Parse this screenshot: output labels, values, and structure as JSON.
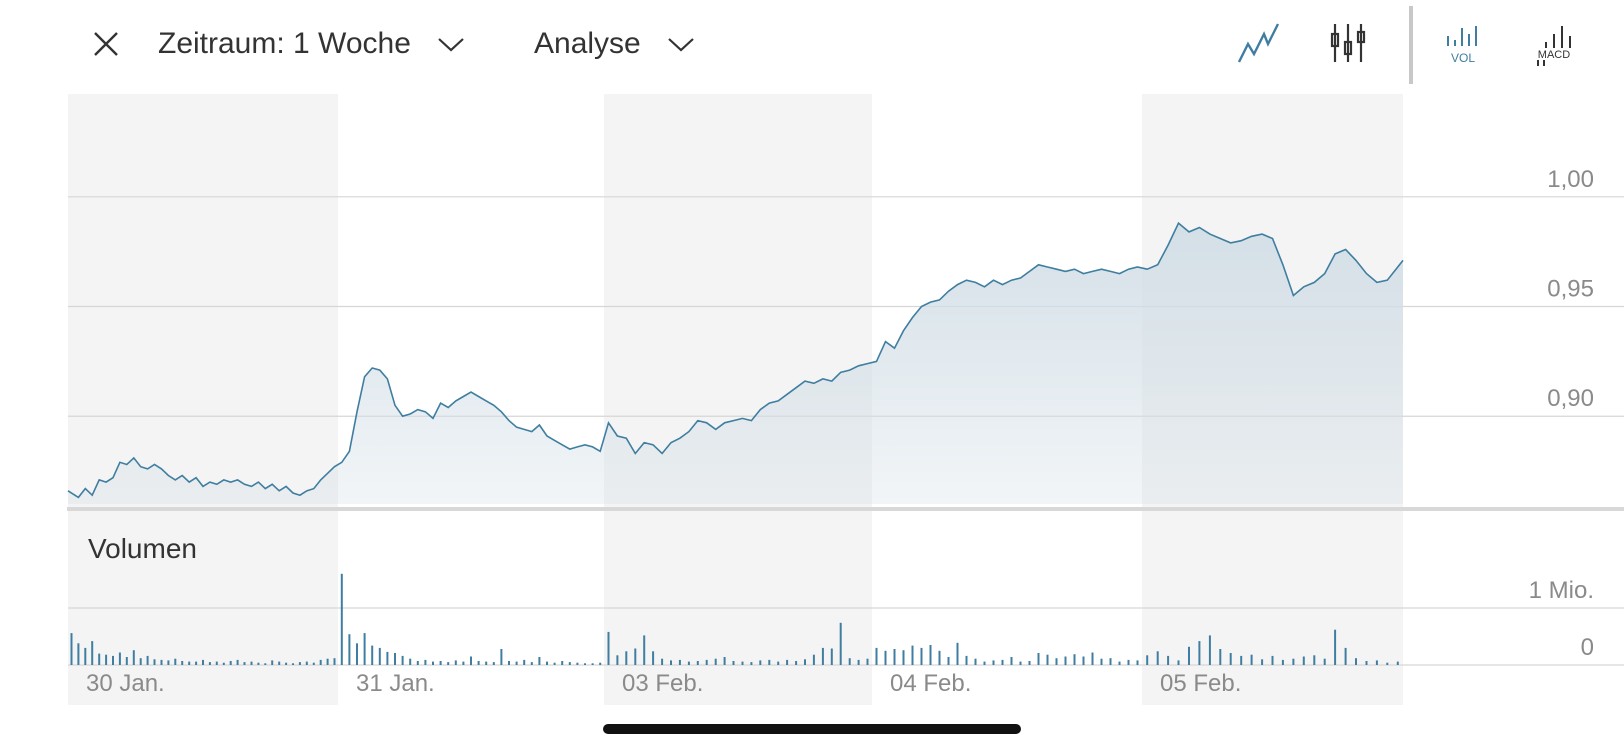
{
  "toolbar": {
    "close_icon": "close-icon",
    "period_label": "Zeitraum: 1 Woche",
    "analysis_label": "Analyse",
    "tools": [
      {
        "name": "line-chart-icon",
        "active": true
      },
      {
        "name": "candlestick-icon",
        "active": false
      },
      {
        "name": "volume-icon",
        "label": "VOL",
        "active": true
      },
      {
        "name": "macd-icon",
        "label": "MACD",
        "active": false
      }
    ]
  },
  "colors": {
    "line": "#3f7ea0",
    "fill": "#d2dee6",
    "band": "#f4f4f4",
    "grid": "#d6d6d6",
    "tick_text": "#8a8a8a",
    "active_tool": "#3f7ea0",
    "inactive_tool": "#333333"
  },
  "chart_data": {
    "type": "line",
    "x_ticks": [
      "30 Jan.",
      "31 Jan.",
      "03 Feb.",
      "04 Feb.",
      "05 Feb."
    ],
    "price_panel": {
      "y_ticks": [
        "1,00",
        "0,95",
        "0,90"
      ],
      "y_tick_values": [
        1.0,
        0.95,
        0.9
      ],
      "ylim": [
        0.86,
        1.035
      ],
      "grid": true,
      "series": [
        {
          "day": "30 Jan.",
          "values": [
            0.866,
            0.863,
            0.867,
            0.864,
            0.871,
            0.87,
            0.872,
            0.879,
            0.878,
            0.881,
            0.877,
            0.876,
            0.878,
            0.876,
            0.873,
            0.871,
            0.873,
            0.87,
            0.872,
            0.868,
            0.87,
            0.869,
            0.871,
            0.87,
            0.871,
            0.869,
            0.868,
            0.87,
            0.867,
            0.869,
            0.866,
            0.868,
            0.865,
            0.864,
            0.866,
            0.867,
            0.871,
            0.874,
            0.877
          ]
        },
        {
          "day": "31 Jan.",
          "values": [
            0.879,
            0.884,
            0.902,
            0.918,
            0.922,
            0.921,
            0.917,
            0.905,
            0.9,
            0.901,
            0.903,
            0.902,
            0.899,
            0.906,
            0.904,
            0.907,
            0.909,
            0.911,
            0.909,
            0.907,
            0.905,
            0.902,
            0.898,
            0.895,
            0.894,
            0.893,
            0.896,
            0.891,
            0.889,
            0.887,
            0.885,
            0.886,
            0.887,
            0.886,
            0.884
          ]
        },
        {
          "day": "03 Feb.",
          "values": [
            0.897,
            0.891,
            0.89,
            0.883,
            0.888,
            0.887,
            0.883,
            0.888,
            0.89,
            0.893,
            0.898,
            0.897,
            0.894,
            0.897,
            0.898,
            0.899,
            0.898,
            0.903,
            0.906,
            0.907,
            0.91,
            0.913,
            0.916,
            0.915,
            0.917,
            0.916,
            0.92,
            0.921,
            0.923,
            0.924
          ]
        },
        {
          "day": "04 Feb.",
          "values": [
            0.925,
            0.934,
            0.931,
            0.939,
            0.945,
            0.95,
            0.952,
            0.953,
            0.957,
            0.96,
            0.962,
            0.961,
            0.959,
            0.962,
            0.96,
            0.962,
            0.963,
            0.966,
            0.969,
            0.968,
            0.967,
            0.966,
            0.967,
            0.965,
            0.966,
            0.967,
            0.966,
            0.965,
            0.967,
            0.968
          ]
        },
        {
          "day": "05 Feb.",
          "values": [
            0.967,
            0.969,
            0.978,
            0.988,
            0.984,
            0.986,
            0.983,
            0.981,
            0.979,
            0.98,
            0.982,
            0.983,
            0.981,
            0.969,
            0.955,
            0.959,
            0.961,
            0.965,
            0.974,
            0.976,
            0.971,
            0.965,
            0.961,
            0.962,
            0.971
          ]
        }
      ]
    },
    "volume_panel": {
      "title": "Volumen",
      "y_ticks": [
        "1 Mio.",
        "0"
      ],
      "y_tick_values": [
        1000000,
        0
      ],
      "grid": true,
      "series": [
        {
          "day": "30 Jan.",
          "values": [
            560000,
            380000,
            300000,
            420000,
            200000,
            180000,
            160000,
            220000,
            140000,
            260000,
            120000,
            160000,
            100000,
            90000,
            80000,
            110000,
            70000,
            60000,
            60000,
            90000,
            50000,
            60000,
            40000,
            70000,
            90000,
            50000,
            60000,
            40000,
            30000,
            80000,
            60000,
            40000,
            30000,
            50000,
            60000,
            40000,
            90000,
            110000,
            120000
          ]
        },
        {
          "day": "31 Jan.",
          "values": [
            1600000,
            540000,
            380000,
            560000,
            340000,
            300000,
            230000,
            210000,
            160000,
            110000,
            70000,
            90000,
            60000,
            70000,
            50000,
            80000,
            60000,
            150000,
            70000,
            60000,
            50000,
            280000,
            70000,
            60000,
            90000,
            50000,
            140000,
            60000,
            40000,
            70000,
            50000,
            40000,
            30000,
            30000,
            40000
          ]
        },
        {
          "day": "03 Feb.",
          "values": [
            580000,
            170000,
            240000,
            290000,
            520000,
            240000,
            110000,
            80000,
            90000,
            60000,
            70000,
            90000,
            110000,
            140000,
            70000,
            60000,
            50000,
            80000,
            90000,
            60000,
            90000,
            70000,
            100000,
            180000,
            300000,
            290000,
            740000,
            120000,
            90000,
            110000
          ]
        },
        {
          "day": "04 Feb.",
          "values": [
            300000,
            250000,
            280000,
            260000,
            340000,
            300000,
            350000,
            250000,
            140000,
            390000,
            160000,
            110000,
            60000,
            80000,
            90000,
            140000,
            60000,
            70000,
            210000,
            180000,
            120000,
            150000,
            190000,
            150000,
            220000,
            110000,
            120000,
            60000,
            90000,
            80000
          ]
        },
        {
          "day": "05 Feb.",
          "values": [
            170000,
            240000,
            160000,
            80000,
            320000,
            420000,
            520000,
            280000,
            210000,
            160000,
            180000,
            100000,
            160000,
            90000,
            110000,
            150000,
            170000,
            110000,
            620000,
            300000,
            120000,
            70000,
            80000,
            40000,
            60000
          ]
        }
      ]
    }
  }
}
